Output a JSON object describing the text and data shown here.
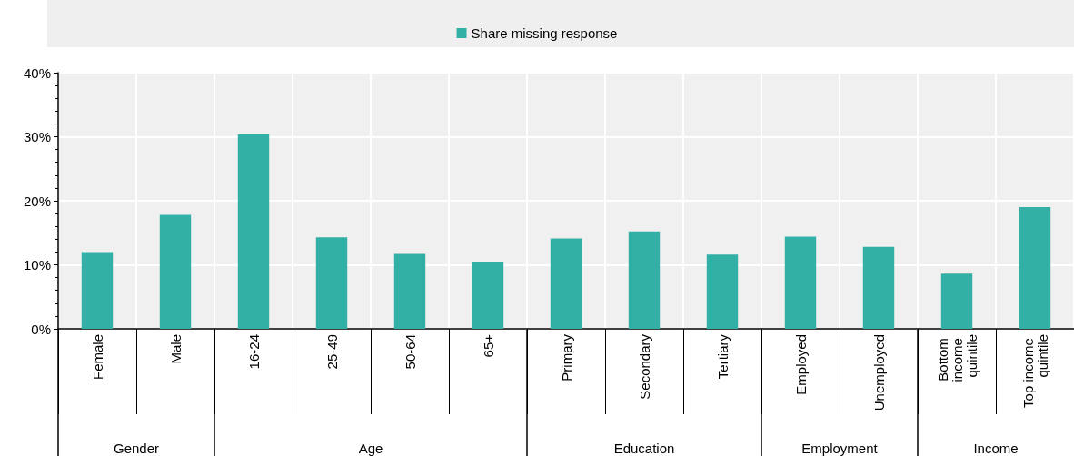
{
  "chart_data": {
    "type": "bar",
    "categories": [
      "Female",
      "Male",
      "16-24",
      "25-49",
      "50-64",
      "65+",
      "Primary",
      "Secondary",
      "Tertiary",
      "Employed",
      "Unemployed",
      "Bottom income quintile",
      "Top income quintile"
    ],
    "series": [
      {
        "name": "Share missing response",
        "color": "#33b0a6",
        "values": [
          12.0,
          17.8,
          30.4,
          14.3,
          11.7,
          10.5,
          14.1,
          15.2,
          11.6,
          14.4,
          12.8,
          8.6,
          19.0
        ]
      }
    ],
    "ylim": [
      0,
      40
    ],
    "yticks": [
      {
        "value": 0,
        "label": "0%"
      },
      {
        "value": 10,
        "label": "10%"
      },
      {
        "value": 20,
        "label": "20%"
      },
      {
        "value": 30,
        "label": "30%"
      },
      {
        "value": 40,
        "label": "40%"
      }
    ],
    "annotations": [
      "Gender",
      "Age",
      "Education",
      "Employment",
      "Income"
    ],
    "grid": true,
    "legend": "top"
  }
}
